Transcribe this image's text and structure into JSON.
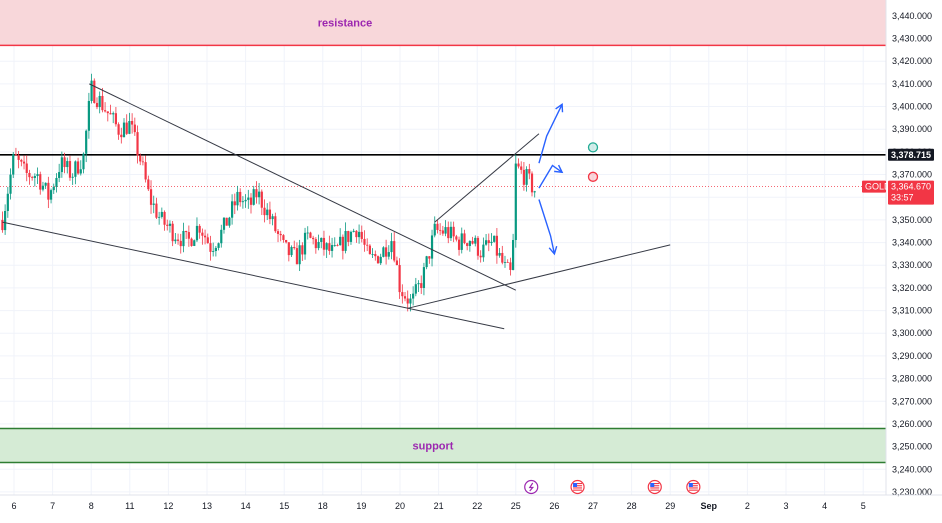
{
  "chart_data": {
    "type": "candlestick",
    "symbol": "GOLD",
    "x_ticks": [
      "6",
      "7",
      "8",
      "11",
      "12",
      "13",
      "14",
      "15",
      "18",
      "19",
      "20",
      "21",
      "22",
      "25",
      "26",
      "27",
      "28",
      "29",
      "Sep",
      "2",
      "3",
      "4",
      "5"
    ],
    "y_ticks": [
      "3,440.000",
      "3,430.000",
      "3,420.000",
      "3,410.000",
      "3,400.000",
      "3,390.000",
      "3,380.000",
      "3,370.000",
      "3,360.000",
      "3,350.000",
      "3,340.000",
      "3,330.000",
      "3,320.000",
      "3,310.000",
      "3,300.000",
      "3,290.000",
      "3,280.000",
      "3,270.000",
      "3,260.000",
      "3,250.000",
      "3,240.000",
      "3,230.000"
    ],
    "y_tick_values": [
      3440,
      3430,
      3420,
      3410,
      3400,
      3390,
      3380,
      3370,
      3360,
      3350,
      3340,
      3330,
      3320,
      3310,
      3300,
      3290,
      3280,
      3270,
      3260,
      3250,
      3240,
      3230
    ],
    "ylim": [
      3226,
      3447
    ],
    "xlim": [
      -0.3,
      22.9
    ],
    "current_price": 3364.67,
    "current_price_label": "3,364.670",
    "countdown_label": "33:57",
    "horizontal_level": 3378.715,
    "horizontal_level_label": "3,378.715",
    "resistance_zone": {
      "label": "resistance",
      "low": 3427,
      "high": 3447
    },
    "support_zone": {
      "label": "support",
      "low": 3243,
      "high": 3258
    },
    "closes": [
      {
        "x": -0.3,
        "y": 3350
      },
      {
        "x": 0.0,
        "y": 3378
      },
      {
        "x": 0.3,
        "y": 3370
      },
      {
        "x": 0.6,
        "y": 3370
      },
      {
        "x": 0.9,
        "y": 3360
      },
      {
        "x": 1.2,
        "y": 3375
      },
      {
        "x": 1.5,
        "y": 3370
      },
      {
        "x": 1.8,
        "y": 3378
      },
      {
        "x": 2.0,
        "y": 3408
      },
      {
        "x": 2.4,
        "y": 3398
      },
      {
        "x": 2.7,
        "y": 3390
      },
      {
        "x": 3.0,
        "y": 3392
      },
      {
        "x": 3.3,
        "y": 3375
      },
      {
        "x": 3.5,
        "y": 3360
      },
      {
        "x": 3.8,
        "y": 3350
      },
      {
        "x": 4.1,
        "y": 3345
      },
      {
        "x": 4.5,
        "y": 3340
      },
      {
        "x": 4.8,
        "y": 3348
      },
      {
        "x": 5.1,
        "y": 3338
      },
      {
        "x": 5.4,
        "y": 3345
      },
      {
        "x": 5.8,
        "y": 3360
      },
      {
        "x": 6.1,
        "y": 3356
      },
      {
        "x": 6.3,
        "y": 3362
      },
      {
        "x": 6.6,
        "y": 3352
      },
      {
        "x": 7.0,
        "y": 3337
      },
      {
        "x": 7.3,
        "y": 3333
      },
      {
        "x": 7.6,
        "y": 3342
      },
      {
        "x": 8.0,
        "y": 3338
      },
      {
        "x": 8.3,
        "y": 3335
      },
      {
        "x": 8.6,
        "y": 3342
      },
      {
        "x": 8.9,
        "y": 3347
      },
      {
        "x": 9.2,
        "y": 3332
      },
      {
        "x": 9.5,
        "y": 3335
      },
      {
        "x": 9.8,
        "y": 3342
      },
      {
        "x": 10.0,
        "y": 3320
      },
      {
        "x": 10.3,
        "y": 3313
      },
      {
        "x": 10.6,
        "y": 3325
      },
      {
        "x": 10.9,
        "y": 3345
      },
      {
        "x": 11.2,
        "y": 3345
      },
      {
        "x": 11.5,
        "y": 3340
      },
      {
        "x": 11.8,
        "y": 3342
      },
      {
        "x": 12.1,
        "y": 3336
      },
      {
        "x": 12.4,
        "y": 3340
      },
      {
        "x": 12.7,
        "y": 3329
      },
      {
        "x": 12.9,
        "y": 3325
      },
      {
        "x": 13.0,
        "y": 3373
      },
      {
        "x": 13.2,
        "y": 3370
      },
      {
        "x": 13.5,
        "y": 3363
      }
    ],
    "trendlines": [
      {
        "name": "upper-descending",
        "points": [
          {
            "x": 1.95,
            "y": 3410
          },
          {
            "x": 13.0,
            "y": 3319
          }
        ]
      },
      {
        "name": "lower-descending",
        "points": [
          {
            "x": -0.3,
            "y": 3349
          },
          {
            "x": 12.7,
            "y": 3302
          }
        ]
      },
      {
        "name": "lower-ascending",
        "points": [
          {
            "x": 10.2,
            "y": 3311
          },
          {
            "x": 17.0,
            "y": 3339
          }
        ]
      },
      {
        "name": "upper-ascending",
        "points": [
          {
            "x": 10.9,
            "y": 3349
          },
          {
            "x": 13.6,
            "y": 3388
          }
        ]
      }
    ],
    "projections": [
      {
        "name": "bullish-projection",
        "color": "#2962ff",
        "points": [
          {
            "x": 13.6,
            "y": 3375
          },
          {
            "x": 13.8,
            "y": 3387
          },
          {
            "x": 14.2,
            "y": 3401
          }
        ]
      },
      {
        "name": "pullback-projection",
        "color": "#2962ff",
        "points": [
          {
            "x": 13.6,
            "y": 3364
          },
          {
            "x": 13.95,
            "y": 3374
          },
          {
            "x": 14.2,
            "y": 3371
          }
        ]
      },
      {
        "name": "bearish-projection",
        "color": "#2962ff",
        "points": [
          {
            "x": 13.6,
            "y": 3359
          },
          {
            "x": 13.9,
            "y": 3343
          },
          {
            "x": 14.0,
            "y": 3335
          }
        ]
      }
    ],
    "markers": [
      {
        "name": "green-target-circle",
        "x": 15.0,
        "y": 3382,
        "color": "#22ab94"
      },
      {
        "name": "red-stop-circle",
        "x": 15.0,
        "y": 3369,
        "color": "#f23645"
      }
    ],
    "event_icons": [
      {
        "name": "lightning-event-icon",
        "x": 13.4,
        "color": "#9c27b0"
      },
      {
        "name": "us-flag-event-icon",
        "x": 14.6,
        "color": "#f23645"
      },
      {
        "name": "us-flag-event-icon",
        "x": 16.6,
        "color": "#f23645"
      },
      {
        "name": "us-flag-event-icon",
        "x": 17.6,
        "color": "#f23645"
      }
    ]
  },
  "colors": {
    "bull": "#089981",
    "bear": "#f23645",
    "resistance_fill": "#f8d7da",
    "resistance_line": "#f23645",
    "resistance_text": "#9c27b0",
    "support_fill": "#d5ebd5",
    "support_line": "#2e7d32",
    "support_text": "#9c27b0",
    "level_line": "#000000",
    "trendline": "#363a45",
    "grid": "#f0f3fa",
    "price_tag": "#f23645"
  }
}
